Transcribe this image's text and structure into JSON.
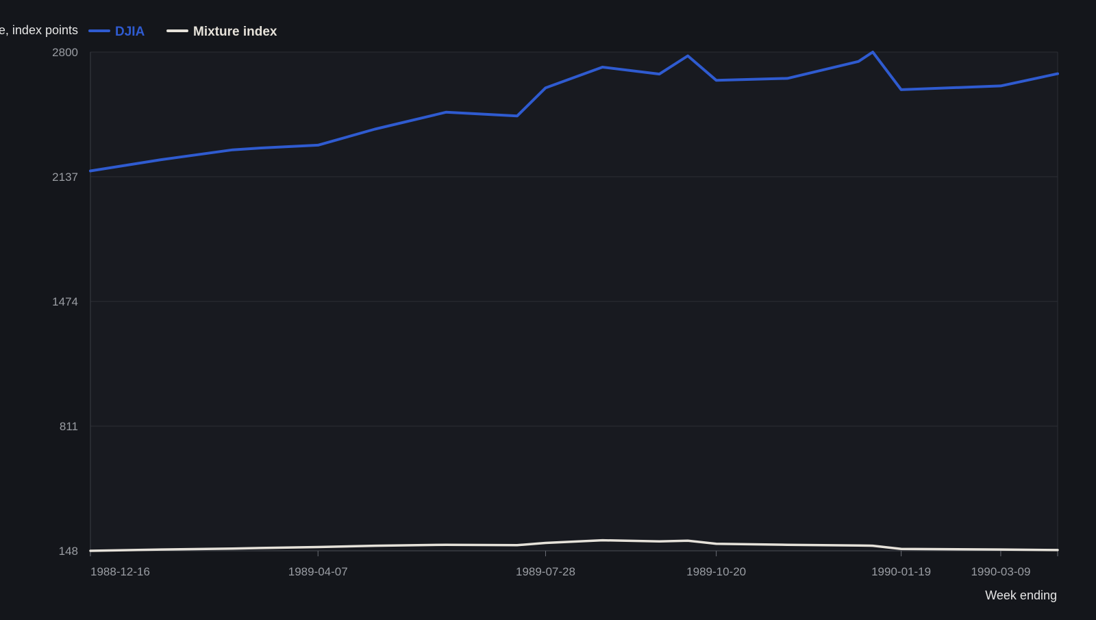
{
  "chart_data": {
    "type": "line",
    "title": "",
    "ylabel": "Value, index points",
    "xlabel": "Week ending",
    "ylim": [
      148,
      2800
    ],
    "yticks": [
      148,
      811,
      1474,
      2137,
      2800
    ],
    "grid": true,
    "legend_position": "top-left",
    "x": [
      "1988-12-16",
      "1989-01-20",
      "1989-02-24",
      "1989-03-10",
      "1989-04-07",
      "1989-05-05",
      "1989-06-09",
      "1989-07-14",
      "1989-07-28",
      "1989-08-25",
      "1989-09-22",
      "1989-10-06",
      "1989-10-20",
      "1989-11-24",
      "1989-12-29",
      "1990-01-05",
      "1990-01-19",
      "1990-03-09",
      "1990-04-06"
    ],
    "xtick_labels": [
      "1988-12-16",
      "1989-04-07",
      "1989-07-28",
      "1989-10-20",
      "1990-01-19",
      "1990-03-09"
    ],
    "series": [
      {
        "name": "DJIA",
        "color": "#2f5bd0",
        "values": [
          2168,
          2228,
          2280,
          2290,
          2305,
          2390,
          2480,
          2460,
          2610,
          2720,
          2683,
          2780,
          2650,
          2660,
          2750,
          2800,
          2600,
          2620,
          2685
        ]
      },
      {
        "name": "Mixture index",
        "color": "#e6e2da",
        "values": [
          148,
          155,
          160,
          163,
          168,
          175,
          180,
          178,
          190,
          204,
          198,
          202,
          185,
          180,
          176,
          175,
          158,
          155,
          152
        ]
      }
    ]
  }
}
